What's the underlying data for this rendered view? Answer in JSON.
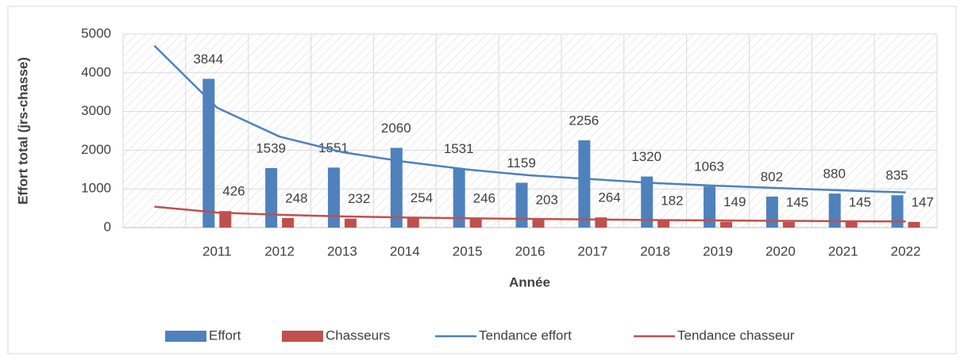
{
  "chart_data": {
    "type": "bar",
    "y_label": "Effort total (jrs-chasse)",
    "x_label": "Année",
    "categories": [
      null,
      "2011",
      "2012",
      "2013",
      "2014",
      "2015",
      "2016",
      "2017",
      "2018",
      "2019",
      "2020",
      "2021",
      "2022"
    ],
    "series": [
      {
        "name": "Effort",
        "type": "bar",
        "color": "#4f81bd",
        "values": [
          null,
          3844,
          1539,
          1551,
          2060,
          1531,
          1159,
          2256,
          1320,
          1063,
          802,
          880,
          835
        ]
      },
      {
        "name": "Chasseurs",
        "type": "bar",
        "color": "#c0504d",
        "values": [
          null,
          426,
          248,
          232,
          254,
          246,
          203,
          264,
          182,
          149,
          145,
          145,
          147
        ]
      },
      {
        "name": "Tendance effort",
        "type": "line",
        "color": "#4f81bd",
        "values": [
          4700,
          3100,
          2350,
          1950,
          1700,
          1500,
          1350,
          1250,
          1150,
          1080,
          1020,
          960,
          910
        ]
      },
      {
        "name": "Tendance chasseur",
        "type": "line",
        "color": "#c0504d",
        "values": [
          540,
          390,
          330,
          290,
          260,
          240,
          225,
          210,
          195,
          185,
          175,
          165,
          160
        ]
      }
    ],
    "ylim": [
      0,
      5000
    ],
    "yticks": [
      0,
      1000,
      2000,
      3000,
      4000,
      5000
    ],
    "grid": true,
    "legend": "bottom"
  }
}
